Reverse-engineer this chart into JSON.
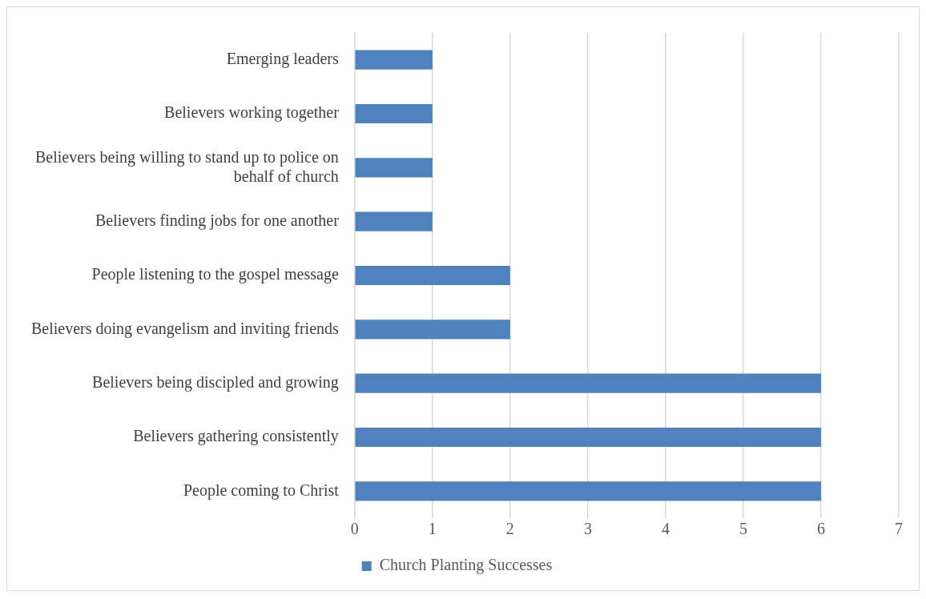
{
  "chart_data": {
    "type": "bar",
    "orientation": "horizontal",
    "categories": [
      "Emerging leaders",
      "Believers working together",
      "Believers being willing to stand up to police on behalf of church",
      "Believers finding jobs for one another",
      "People listening to the gospel message",
      "Believers doing evangelism and inviting friends",
      "Believers being discipled and growing",
      "Believers gathering consistently",
      "People coming to Christ"
    ],
    "series": [
      {
        "name": "Church Planting Successes",
        "color": "#4f81bd",
        "values": [
          1,
          1,
          1,
          1,
          2,
          2,
          6,
          6,
          6
        ]
      }
    ],
    "xlim": [
      0,
      7
    ],
    "xticks": [
      0,
      1,
      2,
      3,
      4,
      5,
      6,
      7
    ],
    "grid": "x",
    "legend": "bottom"
  }
}
